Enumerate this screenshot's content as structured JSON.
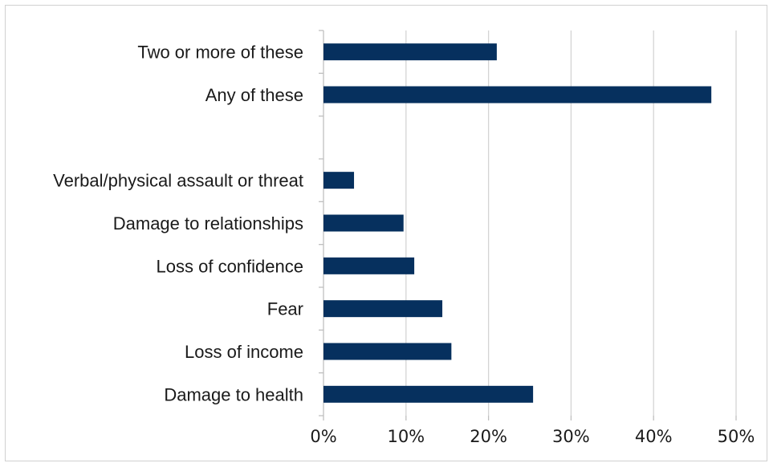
{
  "chart_data": {
    "type": "bar",
    "orientation": "horizontal",
    "categories": [
      "Two or more of these",
      "Any of these",
      "",
      "Verbal/physical assault or threat",
      "Damage to relationships",
      "Loss of confidence",
      "Fear",
      "Loss of income",
      "Damage to health"
    ],
    "values": [
      21,
      47,
      null,
      3.7,
      9.7,
      11,
      14.4,
      15.5,
      25.4
    ],
    "xlim": [
      0,
      50
    ],
    "xticks": [
      0,
      10,
      20,
      30,
      40,
      50
    ],
    "xtick_labels": [
      "0%",
      "10%",
      "20%",
      "30%",
      "40%",
      "50%"
    ],
    "grid": "vertical",
    "bar_color": "#06305e"
  }
}
